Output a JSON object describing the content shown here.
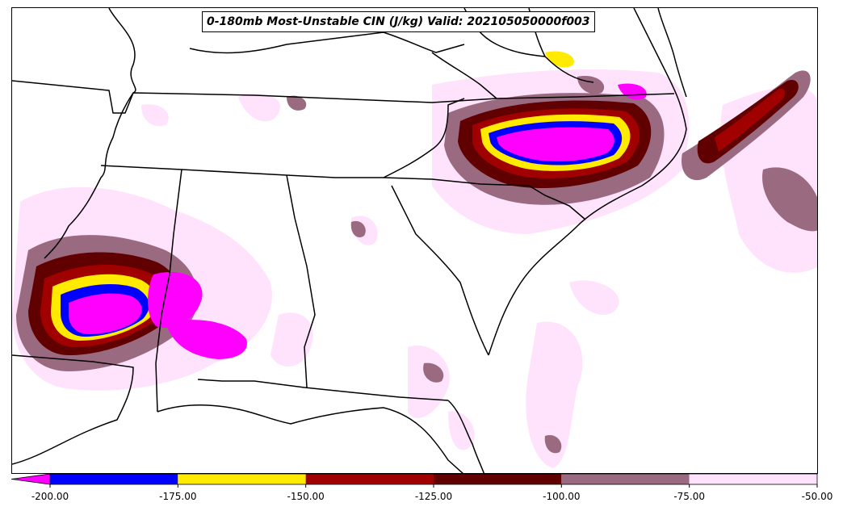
{
  "title": "0-180mb Most-Unstable CIN (J/kg) Valid: 202105050000f003",
  "colorbar": {
    "extend": "min",
    "ticks": [
      "-200.00",
      "-175.00",
      "-150.00",
      "-125.00",
      "-100.00",
      "-75.00",
      "-50.00"
    ],
    "bins": [
      {
        "range": "< -200",
        "color": "#ff00ff"
      },
      {
        "range": "-200 to -175",
        "color": "#0000ff"
      },
      {
        "range": "-175 to -150",
        "color": "#ffea00"
      },
      {
        "range": "-150 to -125",
        "color": "#a00000"
      },
      {
        "range": "-125 to -100",
        "color": "#600000"
      },
      {
        "range": "-100 to -75",
        "color": "#9a6a80"
      },
      {
        "range": "-75 to -50",
        "color": "#ffe2fb"
      }
    ]
  }
}
